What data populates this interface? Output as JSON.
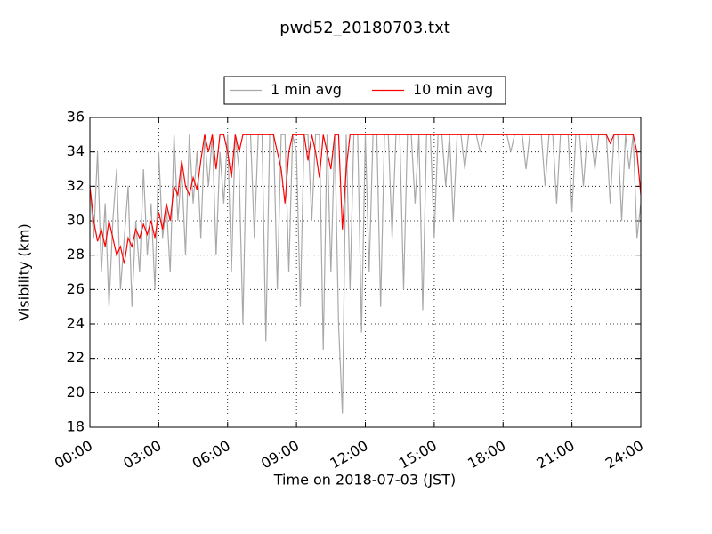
{
  "chart_data": {
    "type": "line",
    "title": "pwd52_20180703.txt",
    "x_label": "Time on 2018-07-03 (JST)",
    "y_label": "Visibility (km)",
    "xlim": [
      0,
      1440
    ],
    "ylim": [
      18,
      36
    ],
    "xticks": [
      {
        "value": 0,
        "label": "00:00"
      },
      {
        "value": 180,
        "label": "03:00"
      },
      {
        "value": 360,
        "label": "06:00"
      },
      {
        "value": 540,
        "label": "09:00"
      },
      {
        "value": 720,
        "label": "12:00"
      },
      {
        "value": 900,
        "label": "15:00"
      },
      {
        "value": 1080,
        "label": "18:00"
      },
      {
        "value": 1260,
        "label": "21:00"
      },
      {
        "value": 1440,
        "label": "24:00"
      }
    ],
    "yticks": [
      18,
      20,
      22,
      24,
      26,
      28,
      30,
      32,
      34,
      36
    ],
    "grid": true,
    "legend": "top",
    "x": [
      0,
      10,
      20,
      30,
      40,
      50,
      60,
      70,
      80,
      90,
      100,
      110,
      120,
      130,
      140,
      150,
      160,
      170,
      180,
      190,
      200,
      210,
      220,
      230,
      240,
      250,
      260,
      270,
      280,
      290,
      300,
      310,
      320,
      330,
      340,
      350,
      360,
      370,
      380,
      390,
      400,
      410,
      420,
      430,
      440,
      450,
      460,
      470,
      480,
      490,
      500,
      510,
      520,
      530,
      540,
      550,
      560,
      570,
      580,
      590,
      600,
      610,
      620,
      630,
      640,
      650,
      660,
      670,
      680,
      690,
      700,
      710,
      720,
      730,
      740,
      750,
      760,
      770,
      780,
      790,
      800,
      810,
      820,
      830,
      840,
      850,
      860,
      870,
      880,
      890,
      900,
      910,
      920,
      930,
      940,
      950,
      960,
      970,
      980,
      990,
      1000,
      1010,
      1020,
      1030,
      1040,
      1050,
      1060,
      1070,
      1080,
      1090,
      1100,
      1110,
      1120,
      1130,
      1140,
      1150,
      1160,
      1170,
      1180,
      1190,
      1200,
      1210,
      1220,
      1230,
      1240,
      1250,
      1260,
      1270,
      1280,
      1290,
      1300,
      1310,
      1320,
      1330,
      1340,
      1350,
      1360,
      1370,
      1380,
      1390,
      1400,
      1410,
      1420,
      1430,
      1440
    ],
    "series": [
      {
        "name": "1 min avg",
        "color": "#a9a9a9",
        "values": [
          32,
          29,
          34,
          27,
          31,
          25,
          30,
          33,
          26,
          29,
          32,
          25,
          30,
          27,
          33,
          28,
          31,
          26,
          34,
          29,
          31,
          27,
          35,
          30,
          33,
          28,
          35,
          31,
          34,
          29,
          35,
          32,
          35,
          28,
          34,
          31,
          35,
          27,
          35,
          33,
          24,
          35,
          35,
          29,
          35,
          35,
          23,
          35,
          35,
          26,
          35,
          35,
          27,
          35,
          34,
          25,
          35,
          35,
          30,
          35,
          35,
          22.5,
          35,
          27,
          35,
          24,
          18.8,
          35,
          26,
          35,
          35,
          23.5,
          35,
          27,
          35,
          35,
          25,
          35,
          35,
          29,
          35,
          35,
          26,
          35,
          35,
          31,
          35,
          24.8,
          35,
          35,
          29,
          35,
          35,
          32,
          35,
          30,
          35,
          35,
          33,
          35,
          35,
          35,
          34,
          35,
          35,
          35,
          35,
          35,
          35,
          35,
          34,
          35,
          35,
          35,
          33,
          35,
          35,
          35,
          35,
          32,
          35,
          35,
          31,
          35,
          35,
          35,
          30.5,
          35,
          35,
          32,
          35,
          35,
          33,
          35,
          35,
          35,
          31,
          35,
          35,
          30,
          35,
          33,
          35,
          29,
          31
        ]
      },
      {
        "name": "10 min avg",
        "color": "#ff0000",
        "values": [
          32,
          30,
          28.8,
          29.5,
          28.5,
          30,
          29,
          28,
          28.5,
          27.5,
          29,
          28.5,
          29.5,
          29,
          29.8,
          29.2,
          30,
          29,
          30.5,
          29.5,
          31,
          30,
          32,
          31.5,
          33.5,
          32,
          31.5,
          32.5,
          31.8,
          33.5,
          35,
          34,
          35,
          33,
          35,
          35,
          34,
          32.5,
          35,
          34,
          35,
          35,
          35,
          35,
          35,
          35,
          35,
          35,
          35,
          34,
          33,
          31,
          34,
          35,
          35,
          35,
          35,
          33.5,
          35,
          34,
          32.5,
          35,
          34,
          33,
          35,
          35,
          29.5,
          33,
          35,
          35,
          35,
          35,
          35,
          35,
          35,
          35,
          35,
          35,
          35,
          35,
          35,
          35,
          35,
          35,
          35,
          35,
          35,
          35,
          35,
          35,
          35,
          35,
          35,
          35,
          35,
          35,
          35,
          35,
          35,
          35,
          35,
          35,
          35,
          35,
          35,
          35,
          35,
          35,
          35,
          35,
          35,
          35,
          35,
          35,
          35,
          35,
          35,
          35,
          35,
          35,
          35,
          35,
          35,
          35,
          35,
          35,
          35,
          35,
          35,
          35,
          35,
          35,
          35,
          35,
          35,
          35,
          34.5,
          35,
          35,
          35,
          35,
          35,
          35,
          34,
          31.5
        ]
      }
    ]
  }
}
